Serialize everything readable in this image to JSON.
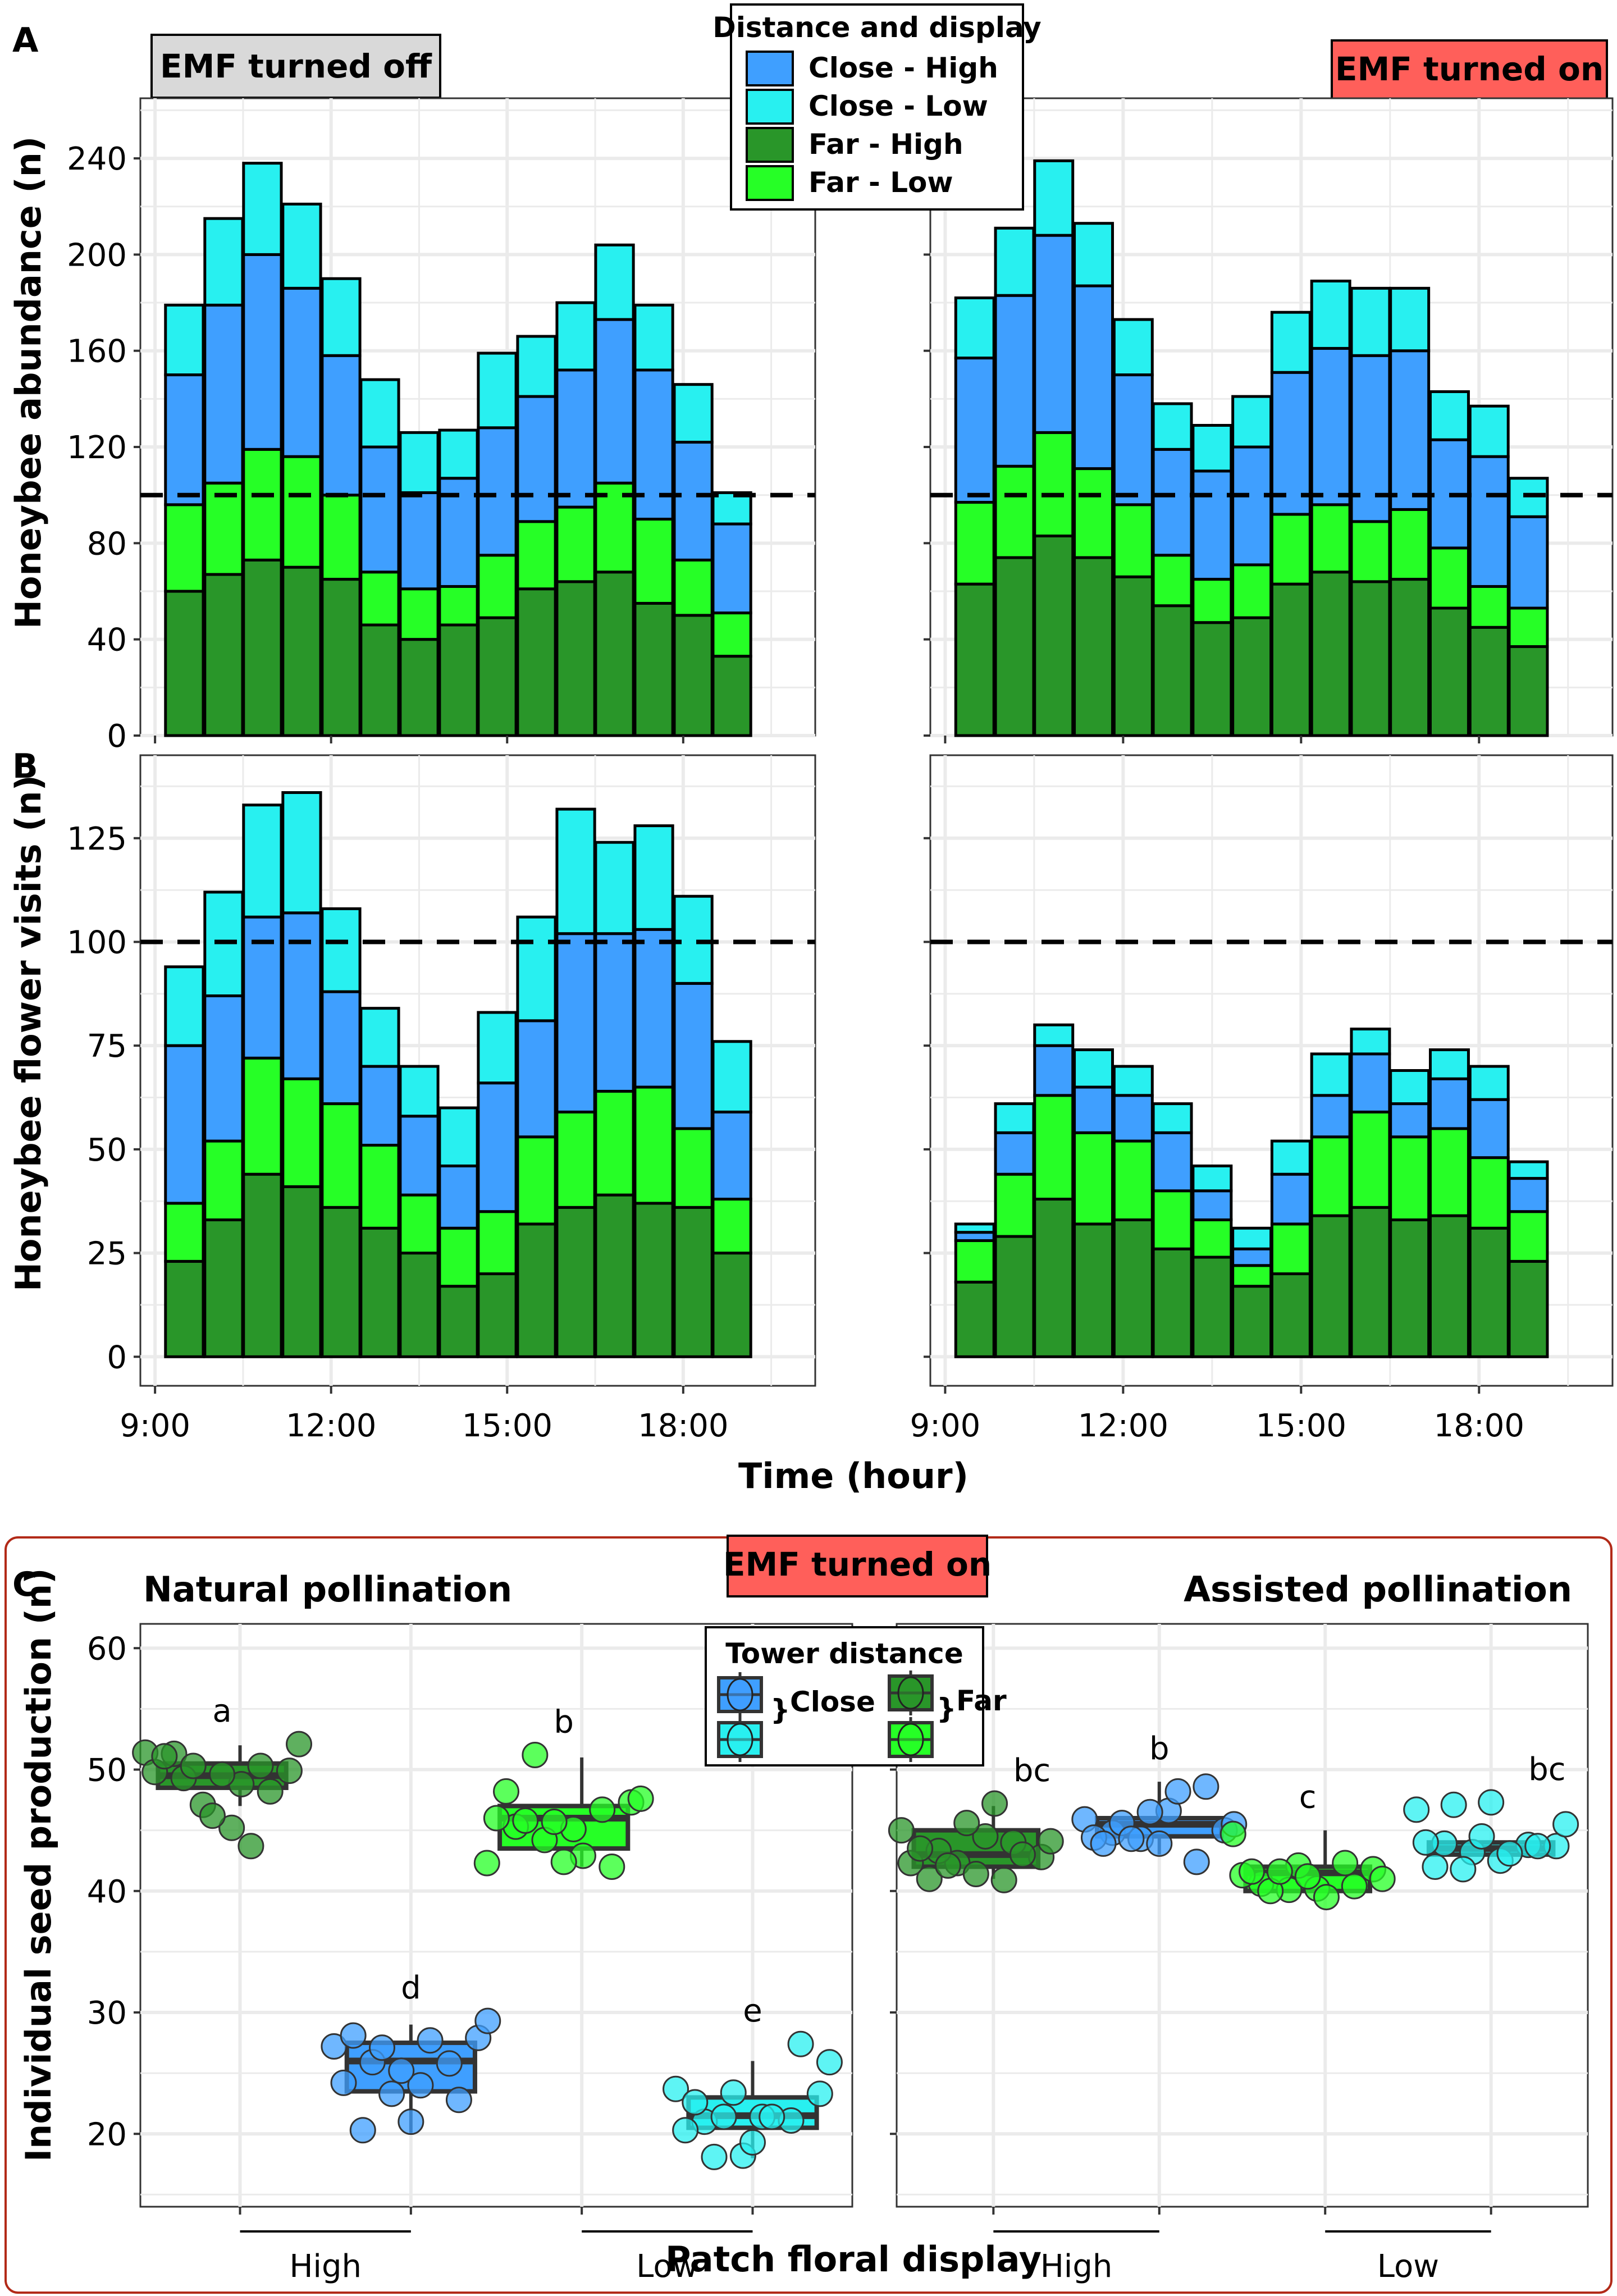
{
  "figure": {
    "panel_labels": [
      "A",
      "B",
      "C"
    ],
    "condition_off": "EMF turned off",
    "condition_on": "EMF turned on",
    "colors": {
      "close_high": "#3f9fff",
      "close_low": "#28f0f0",
      "far_high": "#299629",
      "far_low": "#26ff26",
      "emf_on_bg": "#ff5f5a",
      "emf_off_bg": "#d9d9d9",
      "panel_c_border": "#b22a18"
    }
  },
  "legend_ab": {
    "title": "Distance and display",
    "items": [
      {
        "key": "close_high",
        "label": "Close  -  High"
      },
      {
        "key": "close_low",
        "label": "Close  -  Low"
      },
      {
        "key": "far_high",
        "label": "Far  -  High"
      },
      {
        "key": "far_low",
        "label": "Far  -  Low"
      }
    ]
  },
  "legend_c": {
    "title": "Tower distance",
    "close_label": "Close",
    "far_label": "Far"
  },
  "chart_data": [
    {
      "id": "A-off",
      "type": "bar",
      "stacked": true,
      "panel": "A",
      "title": "EMF turned off",
      "ylabel": "Honeybee abundance (n)",
      "xlabel": "",
      "ylim": [
        0,
        265
      ],
      "yticks": [
        0,
        40,
        80,
        120,
        160,
        200,
        240
      ],
      "xlim": [
        8.75,
        20.25
      ],
      "xticks": [
        9,
        12,
        15,
        18
      ],
      "xtick_labels": [],
      "reference_line": 100,
      "x": [
        9.5,
        10.17,
        10.83,
        11.5,
        12.17,
        12.83,
        13.5,
        14.17,
        14.83,
        15.5,
        16.17,
        16.83,
        17.5,
        18.17,
        18.83
      ],
      "series": [
        {
          "name": "Far - High",
          "key": "far_high",
          "values": [
            60,
            67,
            73,
            70,
            65,
            46,
            40,
            46,
            49,
            61,
            64,
            68,
            55,
            50,
            33
          ]
        },
        {
          "name": "Far - Low",
          "key": "far_low",
          "values": [
            36,
            38,
            46,
            46,
            35,
            22,
            21,
            16,
            26,
            28,
            31,
            37,
            35,
            23,
            18
          ]
        },
        {
          "name": "Close - High",
          "key": "close_high",
          "values": [
            54,
            74,
            81,
            70,
            58,
            52,
            40,
            45,
            53,
            52,
            57,
            68,
            62,
            49,
            37
          ]
        },
        {
          "name": "Close - Low",
          "key": "close_low",
          "values": [
            29,
            36,
            38,
            35,
            32,
            28,
            25,
            20,
            31,
            25,
            28,
            31,
            27,
            24,
            13
          ]
        }
      ]
    },
    {
      "id": "A-on",
      "type": "bar",
      "stacked": true,
      "panel": "A",
      "title": "EMF turned on",
      "ylabel": "Honeybee abundance (n)",
      "ylim": [
        0,
        265
      ],
      "yticks": [
        0,
        40,
        80,
        120,
        160,
        200,
        240
      ],
      "xlim": [
        8.75,
        20.25
      ],
      "xticks": [
        9,
        12,
        15,
        18
      ],
      "xtick_labels": [],
      "reference_line": 100,
      "x": [
        9.5,
        10.17,
        10.83,
        11.5,
        12.17,
        12.83,
        13.5,
        14.17,
        14.83,
        15.5,
        16.17,
        16.83,
        17.5,
        18.17,
        18.83
      ],
      "series": [
        {
          "name": "Far - High",
          "key": "far_high",
          "values": [
            63,
            74,
            83,
            74,
            66,
            54,
            47,
            49,
            63,
            68,
            64,
            65,
            53,
            45,
            37
          ]
        },
        {
          "name": "Far - Low",
          "key": "far_low",
          "values": [
            34,
            38,
            43,
            37,
            30,
            21,
            18,
            22,
            29,
            28,
            25,
            29,
            25,
            17,
            16
          ]
        },
        {
          "name": "Close - High",
          "key": "close_high",
          "values": [
            60,
            71,
            82,
            76,
            54,
            44,
            45,
            49,
            59,
            65,
            69,
            66,
            45,
            54,
            38
          ]
        },
        {
          "name": "Close - Low",
          "key": "close_low",
          "values": [
            25,
            28,
            31,
            26,
            23,
            19,
            19,
            21,
            25,
            28,
            28,
            26,
            20,
            21,
            16
          ]
        }
      ]
    },
    {
      "id": "B-off",
      "type": "bar",
      "stacked": true,
      "panel": "B",
      "ylabel": "Honeybee flower visits (n)",
      "xlabel": "Time (hour)",
      "ylim": [
        -7,
        145
      ],
      "yticks": [
        0,
        25,
        50,
        75,
        100,
        125
      ],
      "xlim": [
        8.75,
        20.25
      ],
      "xticks": [
        9,
        12,
        15,
        18
      ],
      "xtick_labels": [
        "9:00",
        "12:00",
        "15:00",
        "18:00"
      ],
      "reference_line": 100,
      "x": [
        9.5,
        10.17,
        10.83,
        11.5,
        12.17,
        12.83,
        13.5,
        14.17,
        14.83,
        15.5,
        16.17,
        16.83,
        17.5,
        18.17,
        18.83
      ],
      "series": [
        {
          "name": "Far - High",
          "key": "far_high",
          "values": [
            23,
            33,
            44,
            41,
            36,
            31,
            25,
            17,
            20,
            32,
            36,
            39,
            37,
            36,
            25
          ]
        },
        {
          "name": "Far - Low",
          "key": "far_low",
          "values": [
            14,
            19,
            28,
            26,
            25,
            20,
            14,
            14,
            15,
            21,
            23,
            25,
            28,
            19,
            13
          ]
        },
        {
          "name": "Close - High",
          "key": "close_high",
          "values": [
            38,
            35,
            34,
            40,
            27,
            19,
            19,
            15,
            31,
            28,
            43,
            38,
            38,
            35,
            21
          ]
        },
        {
          "name": "Close - Low",
          "key": "close_low",
          "values": [
            19,
            25,
            27,
            29,
            20,
            14,
            12,
            14,
            17,
            25,
            30,
            22,
            25,
            21,
            17
          ]
        }
      ]
    },
    {
      "id": "B-on",
      "type": "bar",
      "stacked": true,
      "panel": "B",
      "ylabel": "Honeybee flower visits (n)",
      "xlabel": "Time (hour)",
      "ylim": [
        -7,
        145
      ],
      "yticks": [
        0,
        25,
        50,
        75,
        100,
        125
      ],
      "xlim": [
        8.75,
        20.25
      ],
      "xticks": [
        9,
        12,
        15,
        18
      ],
      "xtick_labels": [
        "9:00",
        "12:00",
        "15:00",
        "18:00"
      ],
      "reference_line": 100,
      "x": [
        9.5,
        10.17,
        10.83,
        11.5,
        12.17,
        12.83,
        13.5,
        14.17,
        14.83,
        15.5,
        16.17,
        16.83,
        17.5,
        18.17,
        18.83
      ],
      "series": [
        {
          "name": "Far - High",
          "key": "far_high",
          "values": [
            18,
            29,
            38,
            32,
            33,
            26,
            24,
            17,
            20,
            34,
            36,
            33,
            34,
            31,
            23
          ]
        },
        {
          "name": "Far - Low",
          "key": "far_low",
          "values": [
            10,
            15,
            25,
            22,
            19,
            14,
            9,
            5,
            12,
            19,
            23,
            20,
            21,
            17,
            12
          ]
        },
        {
          "name": "Close - High",
          "key": "close_high",
          "values": [
            2,
            10,
            12,
            11,
            11,
            14,
            7,
            4,
            12,
            10,
            14,
            8,
            12,
            14,
            8
          ]
        },
        {
          "name": "Close - Low",
          "key": "close_low",
          "values": [
            2,
            7,
            5,
            9,
            7,
            7,
            6,
            5,
            8,
            10,
            6,
            8,
            7,
            8,
            4
          ]
        }
      ]
    },
    {
      "id": "C-natural",
      "type": "box",
      "panel": "C",
      "title": "Natural pollination",
      "ylabel": "Individual seed production (n)",
      "xlabel": "Patch floral display",
      "ylim": [
        14,
        62
      ],
      "yticks": [
        20,
        30,
        40,
        50,
        60
      ],
      "group_labels": [
        "High",
        "Low"
      ],
      "boxes": [
        {
          "group": "High",
          "distance": "Far",
          "key": "far_high",
          "q1": 48.5,
          "median": 49.5,
          "q3": 50.5,
          "whisker_low": 47,
          "whisker_high": 52,
          "letter": "a",
          "points": [
            51.4,
            51.3,
            47.1,
            45.2,
            50.3,
            49.9,
            49.8,
            49.3,
            46.2,
            48.8,
            48.2,
            52.1,
            51.1,
            50.3,
            49.6,
            43.7
          ]
        },
        {
          "group": "High",
          "distance": "Close",
          "key": "close_high",
          "q1": 23.5,
          "median": 26,
          "q3": 27.5,
          "whisker_low": 20,
          "whisker_high": 29,
          "letter": "d",
          "points": [
            27.2,
            20.3,
            23.3,
            24.0,
            25.8,
            27.9,
            24.2,
            25.9,
            25.2,
            27.7,
            22.8,
            29.3,
            28.1,
            27.1,
            21.0
          ]
        },
        {
          "group": "Low",
          "distance": "Far",
          "key": "far_low",
          "q1": 43.5,
          "median": 46,
          "q3": 47,
          "whisker_low": 42,
          "whisker_high": 51,
          "letter": "b",
          "points": [
            42.3,
            45.3,
            44.2,
            45.1,
            46.7,
            47.3,
            46.0,
            45.8,
            45.7,
            42.9,
            42.0,
            47.6,
            48.2,
            51.2,
            42.4
          ]
        },
        {
          "group": "Low",
          "distance": "Close",
          "key": "close_low",
          "q1": 20.5,
          "median": 21.5,
          "q3": 23,
          "whisker_low": 18,
          "whisker_high": 26,
          "letter": "e",
          "points": [
            23.7,
            21.0,
            23.4,
            21.4,
            21.1,
            23.3,
            20.3,
            18.1,
            18.2,
            21.4,
            27.4,
            25.9,
            22.6,
            21.4,
            19.3
          ]
        }
      ]
    },
    {
      "id": "C-assisted",
      "type": "box",
      "panel": "C",
      "title": "Assisted pollination",
      "ylabel": "Individual seed production (n)",
      "xlabel": "Patch floral display",
      "ylim": [
        14,
        62
      ],
      "yticks": [
        20,
        30,
        40,
        50,
        60
      ],
      "group_labels": [
        "High",
        "Low"
      ],
      "boxes": [
        {
          "group": "High",
          "distance": "Far",
          "key": "far_high",
          "q1": 42,
          "median": 43,
          "q3": 45,
          "whisker_low": 41,
          "whisker_high": 47,
          "letter": "bc",
          "points": [
            45.0,
            41.0,
            42.3,
            44.5,
            44.0,
            42.8,
            42.3,
            43.3,
            45.6,
            47.2,
            43.0,
            44.1,
            43.5,
            42.1,
            41.4,
            40.9
          ]
        },
        {
          "group": "High",
          "distance": "Close",
          "key": "close_high",
          "q1": 44.5,
          "median": 45.5,
          "q3": 46,
          "whisker_low": 43,
          "whisker_high": 49,
          "letter": "b",
          "points": [
            45.9,
            44.8,
            44.3,
            46.6,
            42.4,
            45.0,
            44.4,
            45.6,
            46.5,
            48.2,
            48.6,
            45.5,
            43.9,
            44.3,
            43.9
          ]
        },
        {
          "group": "Low",
          "distance": "Far",
          "key": "far_low",
          "q1": 40,
          "median": 41.5,
          "q3": 42,
          "whisker_low": 40,
          "whisker_high": 45,
          "letter": "c",
          "points": [
            44.7,
            40.6,
            40.1,
            40.2,
            42.3,
            41.8,
            41.3,
            40.0,
            42.1,
            39.5,
            40.4,
            41.0,
            41.6,
            41.6,
            41.2
          ]
        },
        {
          "group": "Low",
          "distance": "Close",
          "key": "close_low",
          "q1": 43,
          "median": 43.5,
          "q3": 44,
          "whisker_low": 43,
          "whisker_high": 44,
          "letter": "bc",
          "points": [
            46.7,
            43.9,
            43.2,
            42.5,
            43.8,
            43.7,
            44.0,
            47.1,
            44.5,
            43.1,
            43.7,
            45.5,
            42.0,
            41.8,
            47.3
          ]
        }
      ]
    }
  ]
}
